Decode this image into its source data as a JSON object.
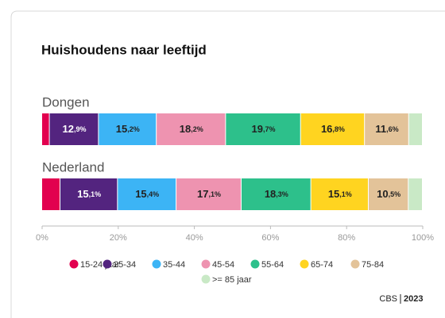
{
  "chart_data": {
    "type": "stacked-bar-horizontal",
    "title": "Huishoudens naar leeftijd",
    "categories": [
      "Dongen",
      "Nederland"
    ],
    "series": [
      {
        "name": "15-24 jaar",
        "color": "#e2004f",
        "values": [
          2.0,
          4.8
        ],
        "value_labels": [
          null,
          null
        ]
      },
      {
        "name": "25-34",
        "color": "#53247f",
        "values": [
          12.9,
          15.1
        ],
        "value_labels": [
          "12,9%",
          "15,1%"
        ]
      },
      {
        "name": "35-44",
        "color": "#3cb4f5",
        "values": [
          15.2,
          15.4
        ],
        "value_labels": [
          "15,2%",
          "15,4%"
        ]
      },
      {
        "name": "45-54",
        "color": "#ee93b0",
        "values": [
          18.2,
          17.1
        ],
        "value_labels": [
          "18,2%",
          "17,1%"
        ]
      },
      {
        "name": "55-64",
        "color": "#2dc08b",
        "values": [
          19.7,
          18.3
        ],
        "value_labels": [
          "19,7%",
          "18,3%"
        ]
      },
      {
        "name": "65-74",
        "color": "#ffd420",
        "values": [
          16.8,
          15.1
        ],
        "value_labels": [
          "16,8%",
          "15,1%"
        ]
      },
      {
        "name": "75-84",
        "color": "#e3c399",
        "values": [
          11.6,
          10.5
        ],
        "value_labels": [
          "11,6%",
          "10,5%"
        ]
      },
      {
        "name": ">= 85 jaar",
        "color": "#c9e9c6",
        "values": [
          3.6,
          3.7
        ],
        "value_labels": [
          null,
          null
        ]
      }
    ],
    "xlim": [
      0,
      100
    ],
    "xticks": [
      {
        "value": 0,
        "label": "0%"
      },
      {
        "value": 20,
        "label": "20%"
      },
      {
        "value": 40,
        "label": "40%"
      },
      {
        "value": 60,
        "label": "60%"
      },
      {
        "value": 80,
        "label": "80%"
      },
      {
        "value": 100,
        "label": "100%"
      }
    ],
    "source": "CBS",
    "year": "2023"
  }
}
